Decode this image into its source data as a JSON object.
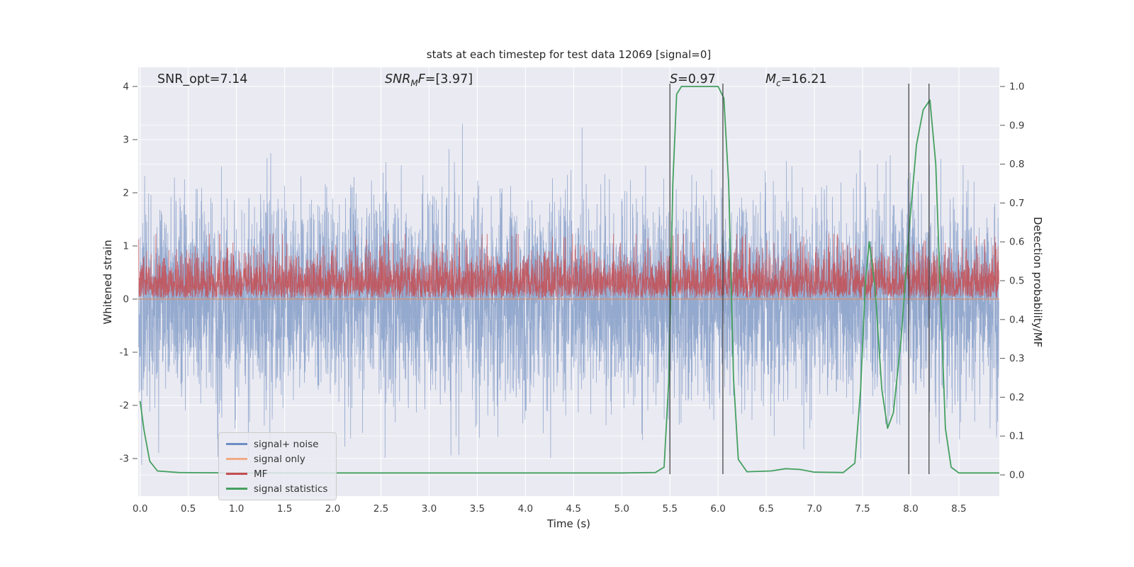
{
  "figure": {
    "title": "stats at each timestep for test data 12069 [signal=0]"
  },
  "chart_data": {
    "type": "line",
    "title": "stats at each timestep for test data 12069 [signal=0]",
    "xlabel": "Time (s)",
    "ylabel_left": "Whitened strain",
    "ylabel_right": "Detection probability/MF",
    "xlim": [
      -0.02,
      8.92
    ],
    "ylim_left": [
      -3.707,
      4.36
    ],
    "ylim_right": [
      -0.0547,
      1.0493
    ],
    "grid": true,
    "background": "#eaeaf2",
    "grid_color": "#ffffff",
    "xticks": {
      "values": [
        0.0,
        0.5,
        1.0,
        1.5,
        2.0,
        2.5,
        3.0,
        3.5,
        4.0,
        4.5,
        5.0,
        5.5,
        6.0,
        6.5,
        7.0,
        7.5,
        8.0,
        8.5
      ],
      "labels": [
        "0.0",
        "0.5",
        "1.0",
        "1.5",
        "2.0",
        "2.5",
        "3.0",
        "3.5",
        "4.0",
        "4.5",
        "5.0",
        "5.5",
        "6.0",
        "6.5",
        "7.0",
        "7.5",
        "8.0",
        "8.5"
      ]
    },
    "yticks_left": {
      "values": [
        -3,
        -2,
        -1,
        0,
        1,
        2,
        3,
        4
      ],
      "labels": [
        "-3",
        "-2",
        "-1",
        "0",
        "1",
        "2",
        "3",
        "4"
      ]
    },
    "yticks_right": {
      "values": [
        0.0,
        0.1,
        0.2,
        0.3,
        0.4,
        0.5,
        0.6,
        0.7,
        0.8,
        0.9,
        1.0
      ],
      "labels": [
        "0.0",
        "0.1",
        "0.2",
        "0.3",
        "0.4",
        "0.5",
        "0.6",
        "0.7",
        "0.8",
        "0.9",
        "1.0"
      ]
    },
    "vlines": {
      "color": "#3c3c3c",
      "xs": [
        5.5,
        6.05,
        7.98,
        8.19
      ]
    },
    "series": [
      {
        "name": "signal+ noise",
        "type": "noise",
        "axis": "left",
        "color": "rgba(76,114,176,0.55)",
        "width": 0.8,
        "n": 5200,
        "mean": 0,
        "sigma": 0.95,
        "clip": [
          -3.45,
          4.02
        ],
        "seed": 42
      },
      {
        "name": "signal only",
        "type": "constant",
        "axis": "left",
        "color": "rgba(222,139,93,0.9)",
        "width": 1.2,
        "value": 0
      },
      {
        "name": "MF",
        "type": "noise-abs",
        "axis": "right",
        "color": "rgba(196,78,82,0.85)",
        "width": 0.8,
        "n": 4600,
        "base": 0.455,
        "sigma": 0.055,
        "clip": [
          0.445,
          0.62
        ],
        "seed": 7
      },
      {
        "name": "signal statistics",
        "type": "points",
        "axis": "right",
        "color": "#44a05f",
        "width": 1.8,
        "points": [
          [
            0.0,
            0.19
          ],
          [
            0.04,
            0.115
          ],
          [
            0.1,
            0.035
          ],
          [
            0.18,
            0.01
          ],
          [
            0.4,
            0.006
          ],
          [
            1.0,
            0.005
          ],
          [
            2.0,
            0.005
          ],
          [
            3.0,
            0.005
          ],
          [
            4.0,
            0.005
          ],
          [
            5.0,
            0.005
          ],
          [
            5.35,
            0.006
          ],
          [
            5.44,
            0.02
          ],
          [
            5.49,
            0.25
          ],
          [
            5.53,
            0.75
          ],
          [
            5.57,
            0.98
          ],
          [
            5.62,
            1.0
          ],
          [
            6.0,
            1.0
          ],
          [
            6.06,
            0.97
          ],
          [
            6.11,
            0.75
          ],
          [
            6.16,
            0.25
          ],
          [
            6.21,
            0.04
          ],
          [
            6.3,
            0.008
          ],
          [
            6.55,
            0.01
          ],
          [
            6.7,
            0.016
          ],
          [
            6.85,
            0.014
          ],
          [
            7.0,
            0.007
          ],
          [
            7.3,
            0.006
          ],
          [
            7.42,
            0.03
          ],
          [
            7.48,
            0.22
          ],
          [
            7.53,
            0.5
          ],
          [
            7.57,
            0.6
          ],
          [
            7.63,
            0.48
          ],
          [
            7.7,
            0.22
          ],
          [
            7.76,
            0.12
          ],
          [
            7.82,
            0.16
          ],
          [
            7.9,
            0.35
          ],
          [
            7.98,
            0.62
          ],
          [
            8.06,
            0.85
          ],
          [
            8.13,
            0.94
          ],
          [
            8.2,
            0.965
          ],
          [
            8.26,
            0.8
          ],
          [
            8.31,
            0.45
          ],
          [
            8.36,
            0.12
          ],
          [
            8.42,
            0.02
          ],
          [
            8.5,
            0.005
          ],
          [
            8.92,
            0.005
          ]
        ]
      }
    ],
    "annotations": [
      {
        "text": "SNR_opt=7.14"
      },
      {
        "main": "SNR",
        "sub": "M",
        "tail": "F",
        "rest": "=[3.97]"
      },
      {
        "main": "S",
        "rest": "=0.97"
      },
      {
        "main": "M",
        "sub": "c",
        "rest": "=16.21"
      }
    ],
    "legend": {
      "position": "lower left",
      "items": [
        {
          "label": "signal+ noise",
          "color": "#6d8dc4"
        },
        {
          "label": "signal only",
          "color": "#f0ab85"
        },
        {
          "label": "MF",
          "color": "#c44e52"
        },
        {
          "label": "signal statistics",
          "color": "#44a05f"
        }
      ]
    }
  }
}
